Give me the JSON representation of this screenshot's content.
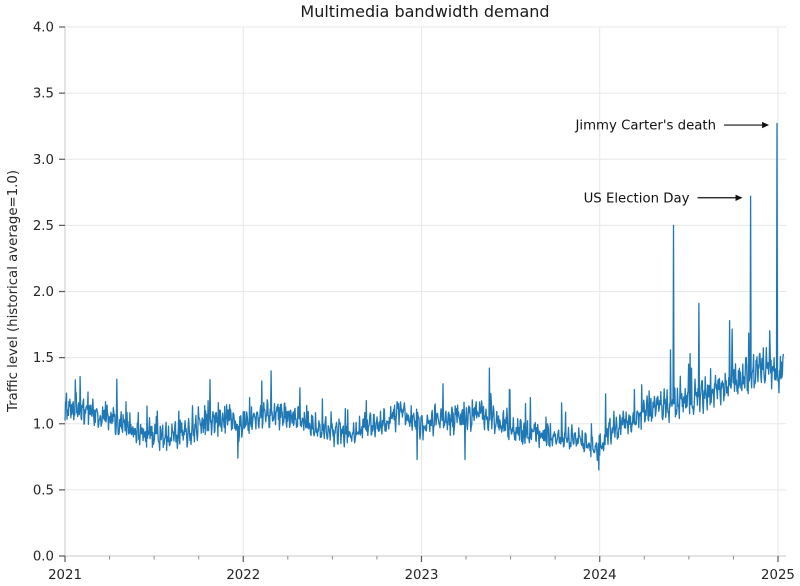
{
  "chart_data": {
    "type": "line",
    "title": "Multimedia bandwidth demand",
    "xlabel": "",
    "ylabel": "Traffic level (historical average=1.0)",
    "xlim": [
      2021,
      2025.045
    ],
    "ylim": [
      0.0,
      4.0
    ],
    "x_end": 2025.03,
    "grid": true,
    "legend": "none",
    "x_tick_values": [
      2021,
      2022,
      2023,
      2024,
      2025
    ],
    "x_tick_labels": [
      "2021",
      "2022",
      "2023",
      "2024",
      "2025"
    ],
    "x_minor_tick_step": 0.25,
    "y_tick_values": [
      0.0,
      0.5,
      1.0,
      1.5,
      2.0,
      2.5,
      3.0,
      3.5,
      4.0
    ],
    "y_tick_labels": [
      "0.0",
      "0.5",
      "1.0",
      "1.5",
      "2.0",
      "2.5",
      "3.0",
      "3.5",
      "4.0"
    ],
    "series": [
      {
        "name": "traffic-level",
        "color": "#1f77b4",
        "cadence": "daily",
        "baseline_points": [
          [
            2021.0,
            1.07
          ],
          [
            2021.05,
            1.12
          ],
          [
            2021.12,
            1.09
          ],
          [
            2021.22,
            1.06
          ],
          [
            2021.32,
            1.0
          ],
          [
            2021.42,
            0.93
          ],
          [
            2021.55,
            0.89
          ],
          [
            2021.68,
            0.93
          ],
          [
            2021.8,
            1.0
          ],
          [
            2021.92,
            1.04
          ],
          [
            2021.97,
            0.96
          ],
          [
            2022.0,
            1.0
          ],
          [
            2022.1,
            1.06
          ],
          [
            2022.22,
            1.08
          ],
          [
            2022.35,
            1.0
          ],
          [
            2022.48,
            0.94
          ],
          [
            2022.6,
            0.93
          ],
          [
            2022.72,
            0.98
          ],
          [
            2022.85,
            1.06
          ],
          [
            2022.95,
            1.05
          ],
          [
            2023.0,
            0.97
          ],
          [
            2023.08,
            1.04
          ],
          [
            2023.2,
            1.03
          ],
          [
            2023.3,
            1.08
          ],
          [
            2023.4,
            1.05
          ],
          [
            2023.5,
            0.97
          ],
          [
            2023.6,
            0.92
          ],
          [
            2023.72,
            0.91
          ],
          [
            2023.85,
            0.89
          ],
          [
            2023.95,
            0.83
          ],
          [
            2024.0,
            0.8
          ],
          [
            2024.04,
            0.93
          ],
          [
            2024.12,
            0.99
          ],
          [
            2024.2,
            1.03
          ],
          [
            2024.28,
            1.1
          ],
          [
            2024.38,
            1.14
          ],
          [
            2024.5,
            1.18
          ],
          [
            2024.62,
            1.24
          ],
          [
            2024.74,
            1.3
          ],
          [
            2024.84,
            1.37
          ],
          [
            2024.92,
            1.45
          ],
          [
            2024.97,
            1.4
          ],
          [
            2025.0,
            1.37
          ],
          [
            2025.03,
            1.43
          ]
        ],
        "noise": {
          "seed": 20250101,
          "weekly_amp": 0.045,
          "daily_amp": 0.075,
          "burst_prob": 0.055,
          "burst_min": 0.08,
          "burst_max": 0.26
        },
        "spikes": [
          {
            "t": 2023.38,
            "value": 1.42
          },
          {
            "t": 2024.415,
            "value": 2.5
          },
          {
            "t": 2024.555,
            "value": 1.91
          },
          {
            "t": 2024.73,
            "value": 1.78
          },
          {
            "t": 2024.846,
            "value": 2.72
          },
          {
            "t": 2024.995,
            "value": 3.27
          }
        ],
        "dips": [
          {
            "t": 2021.97,
            "value": 0.74
          },
          {
            "t": 2022.975,
            "value": 0.73
          },
          {
            "t": 2023.245,
            "value": 0.73
          },
          {
            "t": 2023.995,
            "value": 0.65
          }
        ]
      }
    ],
    "annotations": [
      {
        "label": "Jimmy Carter's death",
        "t": 2024.995,
        "value": 3.27
      },
      {
        "label": "US Election Day",
        "t": 2024.846,
        "value": 2.72
      }
    ]
  },
  "colors": {
    "line": "#1f77b4",
    "grid": "#e7e7e7",
    "spine": "#c9c9c9",
    "tick_major": "#595959",
    "tick_minor": "#8c8c8c",
    "text": "#262626",
    "annotation": "#111111",
    "background": "#ffffff"
  }
}
